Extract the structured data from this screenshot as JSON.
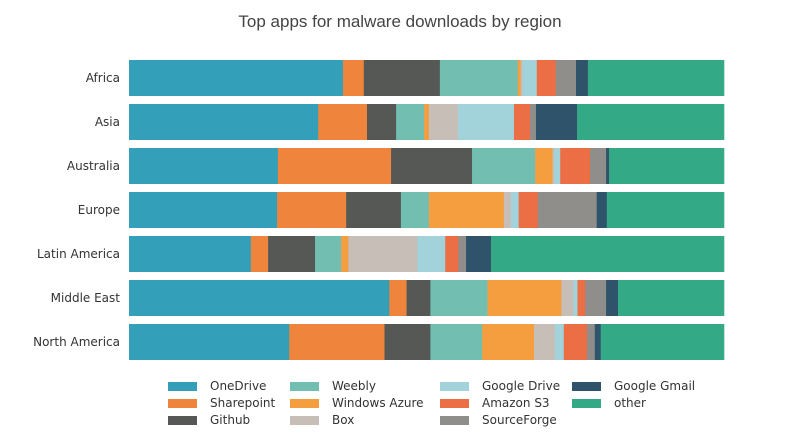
{
  "chart_data": {
    "type": "bar",
    "orientation": "horizontal",
    "stacked": true,
    "title": "Top apps for malware downloads by region",
    "xlabel": "",
    "ylabel": "",
    "xlim": [
      0,
      100
    ],
    "unit": "percent (estimated)",
    "grid": false,
    "legend_position": "bottom",
    "categories": [
      "Africa",
      "Asia",
      "Australia",
      "Europe",
      "Latin America",
      "Middle East",
      "North America"
    ],
    "series": [
      {
        "name": "OneDrive",
        "color": "#349fb9",
        "values": [
          36.0,
          31.8,
          25.0,
          24.9,
          20.5,
          43.7,
          26.9
        ]
      },
      {
        "name": "Sharepoint",
        "color": "#ef843c",
        "values": [
          3.5,
          8.2,
          19.0,
          11.6,
          2.9,
          2.9,
          16.0
        ]
      },
      {
        "name": "Github",
        "color": "#555855",
        "values": [
          12.8,
          4.9,
          13.6,
          9.2,
          7.9,
          4.0,
          7.7
        ]
      },
      {
        "name": "Weebly",
        "color": "#72bfb1",
        "values": [
          13.1,
          4.7,
          10.6,
          4.7,
          4.4,
          9.6,
          8.7
        ]
      },
      {
        "name": "Windows Azure",
        "color": "#f59e3f",
        "values": [
          0.5,
          0.8,
          2.9,
          12.6,
          1.2,
          12.4,
          8.7
        ]
      },
      {
        "name": "Box",
        "color": "#c6beb7",
        "values": [
          0.3,
          4.9,
          0.3,
          1.2,
          11.6,
          2.0,
          3.5
        ]
      },
      {
        "name": "Google Drive",
        "color": "#a2d3da",
        "values": [
          2.4,
          9.4,
          1.0,
          1.3,
          4.7,
          0.7,
          1.5
        ]
      },
      {
        "name": "Amazon S3",
        "color": "#ec6e44",
        "values": [
          3.2,
          2.7,
          5.0,
          3.2,
          2.2,
          1.3,
          3.9
        ]
      },
      {
        "name": "SourceForge",
        "color": "#908e8b",
        "values": [
          3.4,
          1.0,
          2.7,
          9.9,
          1.3,
          3.5,
          1.3
        ]
      },
      {
        "name": "Google Gmail",
        "color": "#2f536a",
        "values": [
          2.0,
          6.9,
          0.5,
          1.7,
          4.2,
          2.0,
          1.0
        ]
      },
      {
        "name": "other",
        "color": "#34a985",
        "values": [
          22.9,
          24.7,
          19.3,
          19.7,
          39.2,
          17.8,
          20.7
        ]
      }
    ]
  }
}
